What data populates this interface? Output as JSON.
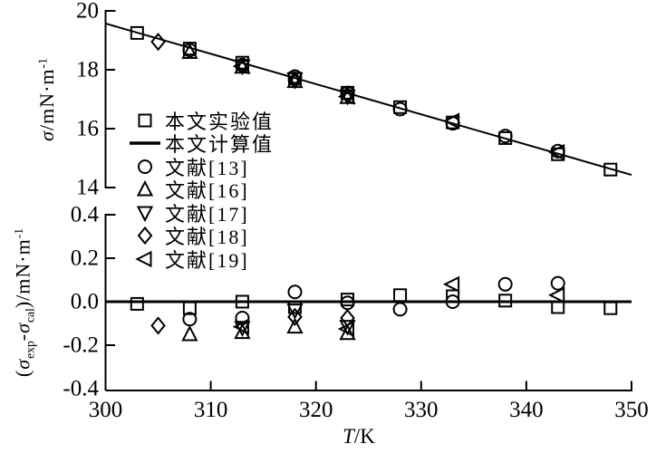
{
  "figure": {
    "background": "#ffffff",
    "ink": "#000000"
  },
  "legend": {
    "items": [
      {
        "marker": "square",
        "label": "本文实验值"
      },
      {
        "marker": "line",
        "label": "本文计算值"
      },
      {
        "marker": "circle",
        "label": "文献[13]"
      },
      {
        "marker": "triangle-up",
        "label": "文献[16]"
      },
      {
        "marker": "triangle-down",
        "label": "文献[17]"
      },
      {
        "marker": "diamond",
        "label": "文献[18]"
      },
      {
        "marker": "triangle-left",
        "label": "文献[19]"
      }
    ]
  },
  "axes": {
    "xlabel_parts": [
      {
        "t": "T",
        "style": "it"
      },
      {
        "t": "/K"
      }
    ],
    "ylabel_top_parts": [
      {
        "t": "σ",
        "style": "it"
      },
      {
        "t": "/mN·m"
      },
      {
        "t": "-1",
        "style": "sup"
      }
    ],
    "ylabel_bottom_parts": [
      {
        "t": "("
      },
      {
        "t": "σ",
        "style": "it"
      },
      {
        "t": "exp",
        "style": "sub"
      },
      {
        "t": "-"
      },
      {
        "t": "σ",
        "style": "it"
      },
      {
        "t": "cal",
        "style": "sub"
      },
      {
        "t": ")/mN·m"
      },
      {
        "t": "-1",
        "style": "sup"
      }
    ]
  },
  "chart_data": [
    {
      "type": "scatter",
      "panel": "top",
      "title": "",
      "xlabel": "T/K",
      "ylabel": "σ/mN·m⁻¹",
      "xlim": [
        300,
        350
      ],
      "ylim": [
        14,
        20
      ],
      "xticks": {
        "values": [
          300,
          310,
          320,
          330,
          340,
          350
        ],
        "labels": [
          "300",
          "310",
          "320",
          "330",
          "340",
          "350"
        ],
        "show_labels": false
      },
      "yticks": {
        "values": [
          20,
          18,
          16,
          14
        ],
        "labels": [
          "20",
          "18",
          "16",
          "14"
        ]
      },
      "grid": false,
      "legend_position": "upper-center-left-inside",
      "line": {
        "name": "本文计算值",
        "x": [
          300,
          350
        ],
        "y": [
          19.57,
          14.43
        ]
      },
      "series": [
        {
          "name": "本文实验值",
          "marker": "square",
          "points": [
            [
              303,
              19.25
            ],
            [
              308,
              18.72
            ],
            [
              313,
              18.24
            ],
            [
              318,
              17.7
            ],
            [
              323,
              17.22
            ],
            [
              328,
              16.73
            ],
            [
              333,
              16.21
            ],
            [
              338,
              15.68
            ],
            [
              343,
              15.13
            ],
            [
              348,
              14.61
            ]
          ]
        },
        {
          "name": "文献[13]",
          "marker": "circle",
          "points": [
            [
              308,
              18.67
            ],
            [
              313,
              18.16
            ],
            [
              318,
              17.77
            ],
            [
              323,
              17.21
            ],
            [
              328,
              16.66
            ],
            [
              333,
              16.18
            ],
            [
              338,
              15.75
            ],
            [
              343,
              15.24
            ]
          ]
        },
        {
          "name": "文献[16]",
          "marker": "triangle-up",
          "points": [
            [
              308,
              18.6
            ],
            [
              313,
              18.1
            ],
            [
              318,
              17.61
            ],
            [
              323,
              17.07
            ]
          ]
        },
        {
          "name": "文献[17]",
          "marker": "triangle-down",
          "points": [
            [
              313,
              18.12
            ],
            [
              318,
              17.68
            ],
            [
              323,
              17.1
            ]
          ]
        },
        {
          "name": "文献[18]",
          "marker": "diamond",
          "points": [
            [
              305,
              18.95
            ],
            [
              318,
              17.65
            ],
            [
              323,
              17.14
            ]
          ]
        },
        {
          "name": "文献[19]",
          "marker": "triangle-left",
          "points": [
            [
              313,
              18.12
            ],
            [
              323,
              17.09
            ],
            [
              333,
              16.26
            ],
            [
              343,
              15.2
            ]
          ]
        }
      ]
    },
    {
      "type": "scatter",
      "panel": "bottom",
      "title": "",
      "xlabel": "T/K",
      "ylabel": "(σexp-σcal)/mN·m⁻¹",
      "xlim": [
        300,
        350
      ],
      "ylim": [
        -0.4,
        0.4
      ],
      "xticks": {
        "values": [
          300,
          310,
          320,
          330,
          340,
          350
        ],
        "labels": [
          "300",
          "310",
          "320",
          "330",
          "340",
          "350"
        ],
        "show_labels": true
      },
      "yticks": {
        "values": [
          0.4,
          0.2,
          0.0,
          -0.2,
          -0.4
        ],
        "labels": [
          "0.4",
          "0.2",
          "0.0",
          "-0.2",
          "-0.4"
        ]
      },
      "grid": false,
      "zero_line": true,
      "series": [
        {
          "name": "本文实验值",
          "marker": "square",
          "points": [
            [
              303,
              -0.01
            ],
            [
              308,
              -0.03
            ],
            [
              313,
              0.0
            ],
            [
              318,
              -0.025
            ],
            [
              323,
              0.01
            ],
            [
              328,
              0.03
            ],
            [
              333,
              0.025
            ],
            [
              338,
              0.005
            ],
            [
              343,
              -0.025
            ],
            [
              348,
              -0.03
            ]
          ]
        },
        {
          "name": "文献[13]",
          "marker": "circle",
          "points": [
            [
              308,
              -0.08
            ],
            [
              313,
              -0.075
            ],
            [
              318,
              0.045
            ],
            [
              323,
              -0.005
            ],
            [
              328,
              -0.035
            ],
            [
              333,
              0.0
            ],
            [
              338,
              0.08
            ],
            [
              343,
              0.085
            ]
          ]
        },
        {
          "name": "文献[16]",
          "marker": "triangle-up",
          "points": [
            [
              308,
              -0.15
            ],
            [
              313,
              -0.14
            ],
            [
              318,
              -0.115
            ],
            [
              323,
              -0.145
            ]
          ]
        },
        {
          "name": "文献[17]",
          "marker": "triangle-down",
          "points": [
            [
              313,
              -0.12
            ],
            [
              318,
              -0.04
            ],
            [
              323,
              -0.115
            ]
          ]
        },
        {
          "name": "文献[18]",
          "marker": "diamond",
          "points": [
            [
              305,
              -0.11
            ],
            [
              318,
              -0.07
            ],
            [
              323,
              -0.075
            ]
          ]
        },
        {
          "name": "文献[19]",
          "marker": "triangle-left",
          "points": [
            [
              313,
              -0.115
            ],
            [
              323,
              -0.125
            ],
            [
              333,
              0.08
            ],
            [
              343,
              0.03
            ]
          ]
        }
      ]
    }
  ]
}
